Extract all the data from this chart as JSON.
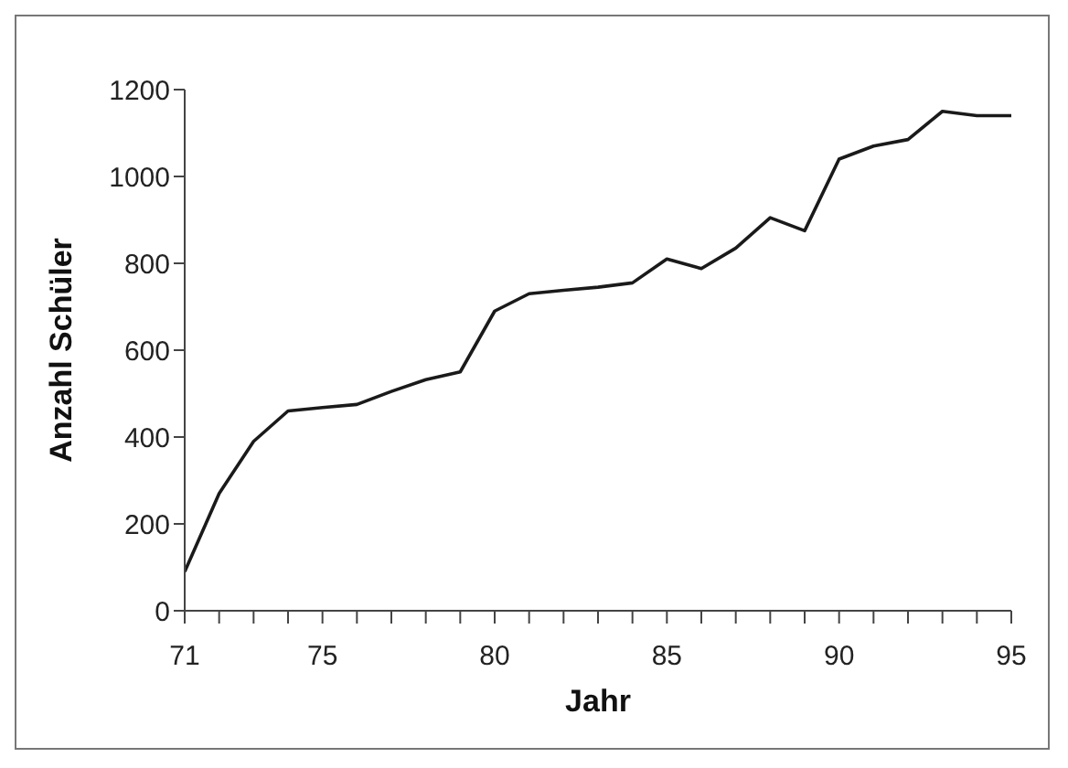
{
  "chart_data": {
    "type": "line",
    "xlabel": "Jahr",
    "ylabel": "Anzahl Schüler",
    "x": [
      71,
      72,
      73,
      74,
      75,
      76,
      77,
      78,
      79,
      80,
      81,
      82,
      83,
      84,
      85,
      86,
      87,
      88,
      89,
      90,
      91,
      92,
      93,
      94,
      95
    ],
    "series": [
      {
        "color": "#1a1a1a",
        "values": [
          90,
          270,
          390,
          460,
          468,
          475,
          505,
          532,
          550,
          690,
          730,
          738,
          745,
          755,
          810,
          788,
          835,
          905,
          875,
          1040,
          1070,
          1085,
          1150,
          1140,
          1140
        ]
      }
    ],
    "xlim": [
      71,
      95
    ],
    "xticks": [
      71,
      {
        "value": 72,
        "label": null
      },
      {
        "value": 73,
        "label": null
      },
      {
        "value": 74,
        "label": null
      },
      75,
      {
        "value": 76,
        "label": null
      },
      {
        "value": 77,
        "label": null
      },
      {
        "value": 78,
        "label": null
      },
      {
        "value": 79,
        "label": null
      },
      80,
      {
        "value": 81,
        "label": null
      },
      {
        "value": 82,
        "label": null
      },
      {
        "value": 83,
        "label": null
      },
      {
        "value": 84,
        "label": null
      },
      85,
      {
        "value": 86,
        "label": null
      },
      {
        "value": 87,
        "label": null
      },
      {
        "value": 88,
        "label": null
      },
      {
        "value": 89,
        "label": null
      },
      90,
      {
        "value": 91,
        "label": null
      },
      {
        "value": 92,
        "label": null
      },
      {
        "value": 93,
        "label": null
      },
      {
        "value": 94,
        "label": null
      },
      95
    ],
    "ylim": [
      0,
      1200
    ],
    "yticks": [
      0,
      200,
      400,
      600,
      800,
      1000,
      1200
    ],
    "grid": false,
    "marker": "none",
    "line_style": "solid"
  }
}
